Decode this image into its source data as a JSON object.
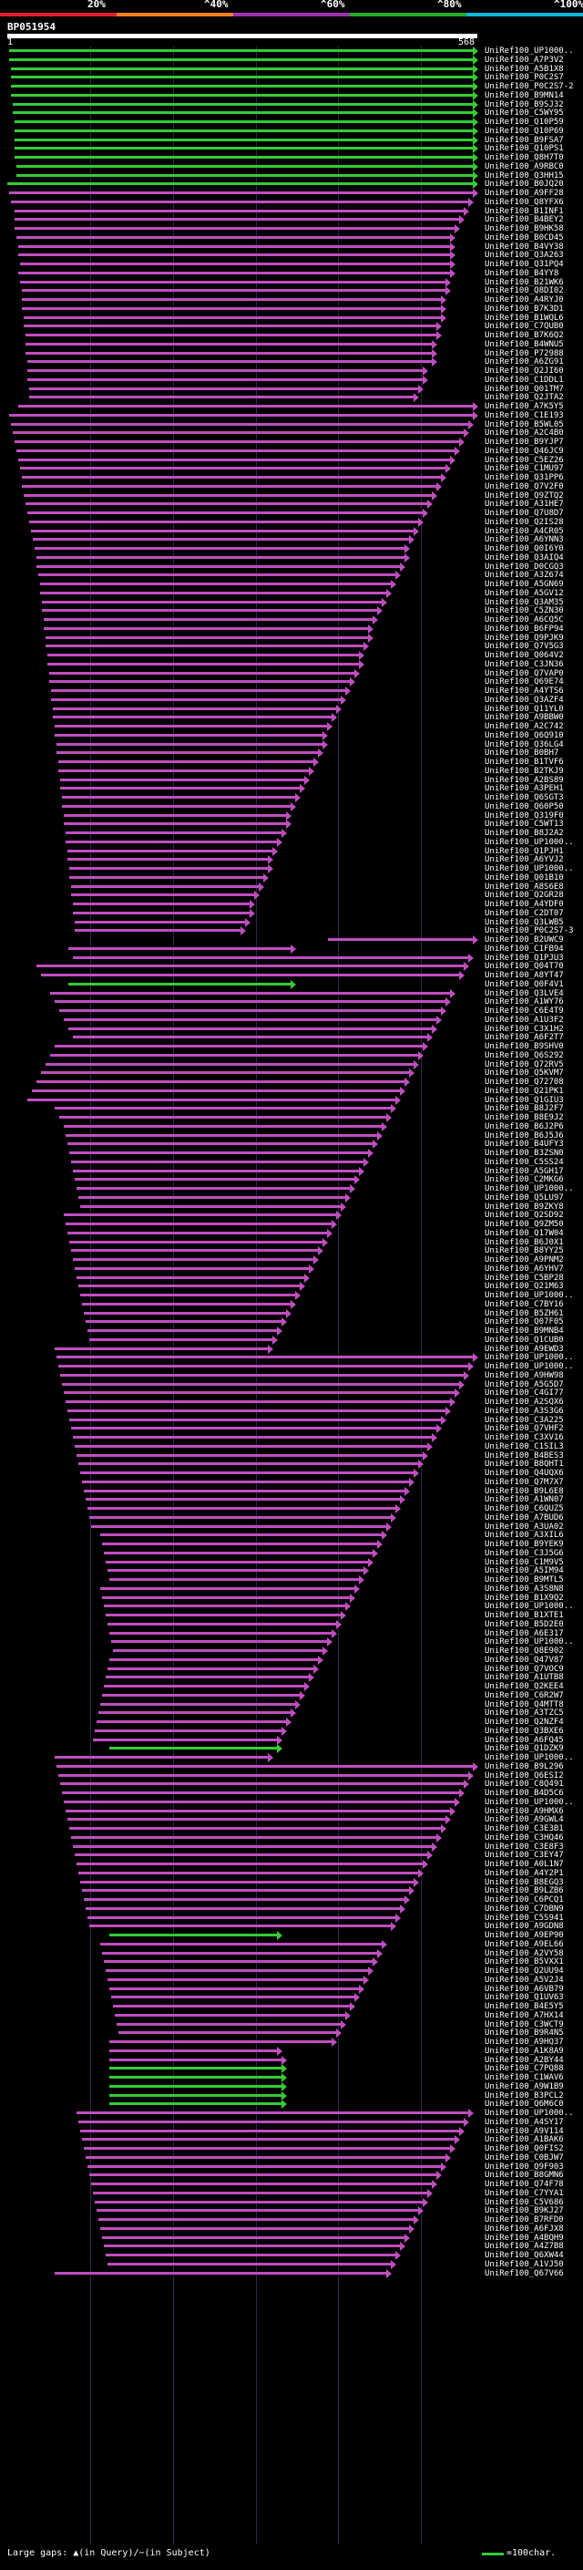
{
  "legend": {
    "segments": [
      {
        "label": "20%",
        "color": "#e0202c"
      },
      {
        "label": "^40%",
        "color": "#ff7f27"
      },
      {
        "label": "^60%",
        "color": "#a030b0"
      },
      {
        "label": "^80%",
        "color": "#22aa22"
      },
      {
        "label": "^100%",
        "color": "#11b6d9"
      }
    ]
  },
  "query": {
    "name": "BP051954",
    "start": "1",
    "end": "568"
  },
  "colors": {
    "high": "#33cc33",
    "mid": "#c04dc0"
  },
  "hits": [
    "UniRef100_UP1000..",
    "UniRef100_A7P3V2",
    "UniRef100_A5B1X8",
    "UniRef100_P0C2S7",
    "UniRef100_P0C2S7-2",
    "UniRef100_B9MN14",
    "UniRef100_B9SJ32",
    "UniRef100_C5WY95",
    "UniRef100_Q10P59",
    "UniRef100_Q10P69",
    "UniRef100_B9FSA7",
    "UniRef100_Q10PS1",
    "UniRef100_Q8H7T0",
    "UniRef100_A9RBC0",
    "UniRef100_Q3HH15",
    "UniRef100_B0JQ20",
    "UniRef100_A9FF28",
    "UniRef100_Q8YFX6",
    "UniRef100_B1INF1",
    "UniRef100_B4BEY2",
    "UniRef100_B9HK58",
    "UniRef100_B0CD45",
    "UniRef100_B4VY38",
    "UniRef100_Q3A263",
    "UniRef100_Q31PQ4",
    "UniRef100_B4YY8",
    "UniRef100_B21WK6",
    "UniRef100_Q8DI02",
    "UniRef100_A4RYJ0",
    "UniRef100_B7K3D1",
    "UniRef100_B1WQL6",
    "UniRef100_C7QUB0",
    "UniRef100_B7K6Q2",
    "UniRef100_B4WNU5",
    "UniRef100_P72988",
    "UniRef100_A6ZG91",
    "UniRef100_Q2JI60",
    "UniRef100_C1DDL1",
    "UniRef100_Q01TM7",
    "UniRef100_Q2JTA2",
    "UniRef100_A7K5Y5",
    "UniRef100_C1E193",
    "UniRef100_B5WL05",
    "UniRef100_A2C4B0",
    "UniRef100_B9YJP7",
    "UniRef100_Q46JC9",
    "UniRef100_C5EZ26",
    "UniRef100_C1MU97",
    "UniRef100_Q31PP6",
    "UniRef100_Q7V2F0",
    "UniRef100_Q9ZTQ2",
    "UniRef100_A31HE7",
    "UniRef100_Q7U8D7",
    "UniRef100_Q2IS28",
    "UniRef100_A4CR05",
    "UniRef100_A6YNN3",
    "UniRef100_Q0I6Y0",
    "UniRef100_Q3AIQ4",
    "UniRef100_D0CGQ3",
    "UniRef100_A3Z674",
    "UniRef100_A5GN69",
    "UniRef100_A5GV12",
    "UniRef100_Q3AM35",
    "UniRef100_C5ZN30",
    "UniRef100_A6CQ5C",
    "UniRef100_B6FP94",
    "UniRef100_Q9PJK9",
    "UniRef100_Q7V5G3",
    "UniRef100_Q064V2",
    "UniRef100_C3JN36",
    "UniRef100_Q7VAP0",
    "UniRef100_Q69E74",
    "UniRef100_A4YTS6",
    "UniRef100_Q3AZF4",
    "UniRef100_Q11YL0",
    "UniRef100_A9BBW0",
    "UniRef100_A2C742",
    "UniRef100_Q6Q910",
    "UniRef100_Q36LG4",
    "UniRef100_B0BH7",
    "UniRef100_B1TVF6",
    "UniRef100_B2TKJ9",
    "UniRef100_A2BS89",
    "UniRef100_A3PEH1",
    "UniRef100_Q6SGT3",
    "UniRef100_Q60P50",
    "UniRef100_Q319F0",
    "UniRef100_C5WT13",
    "UniRef100_B8J2A2",
    "UniRef100_UP1000..",
    "UniRef100_Q1PJH1",
    "UniRef100_A6YVJ2",
    "UniRef100_UP1000..",
    "UniRef100_Q01B10",
    "UniRef100_A8S6E8",
    "UniRef100_Q2GR28",
    "UniRef100_A4YDF0",
    "UniRef100_C2DT07",
    "UniRef100_Q3LWB5",
    "UniRef100_P0C2S7-3",
    "UniRef100_B2UWC9",
    "UniRef100_C1FB94",
    "UniRef100_Q1PJU3",
    "UniRef100_Q04T70",
    "UniRef100_A8YT47",
    "UniRef100_Q0F4V1",
    "UniRef100_Q3LVE4",
    "UniRef100_A1WY76",
    "UniRef100_C6E4T9",
    "UniRef100_A1U3F2",
    "UniRef100_C3X1H2",
    "UniRef100_A6F2T7",
    "UniRef100_B9SHV0",
    "UniRef100_Q6S292",
    "UniRef100_Q72RV5",
    "UniRef100_Q5KVM7",
    "UniRef100_Q72708",
    "UniRef100_Q21PK1",
    "UniRef100_Q1GIU3",
    "UniRef100_B8J2F7",
    "UniRef100_B8E9J2",
    "UniRef100_B6J2P6",
    "UniRef100_B6J5J6",
    "UniRef100_B4UFY3",
    "UniRef100_B3ZSN0",
    "UniRef100_C5SS24",
    "UniRef100_A5GH17",
    "UniRef100_C2MKG6",
    "UniRef100_UP1000..",
    "UniRef100_Q5LU97",
    "UniRef100_B9ZKY8",
    "UniRef100_Q2SD92",
    "UniRef100_Q9ZM50",
    "UniRef100_Q17W04",
    "UniRef100_B6J0X1",
    "UniRef100_B8YY25",
    "UniRef100_A9PNM2",
    "UniRef100_A6YHV7",
    "UniRef100_C5BP28",
    "UniRef100_Q21M63",
    "UniRef100_UP1000..",
    "UniRef100_C7BY16",
    "UniRef100_B5ZH61",
    "UniRef100_Q07F05",
    "UniRef100_B9MNB4",
    "UniRef100_Q1CUB0",
    "UniRef100_A9EWD3",
    "UniRef100_UP1000..",
    "UniRef100_UP1000..",
    "UniRef100_A9HW98",
    "UniRef100_A5G5D7",
    "UniRef100_C4GI77",
    "UniRef100_A2SQX6",
    "UniRef100_A3S3G6",
    "UniRef100_C3A225",
    "UniRef100_Q7VHF2",
    "UniRef100_C3XV16",
    "UniRef100_C1SIL3",
    "UniRef100_B4BES3",
    "UniRef100_B8QHT1",
    "UniRef100_Q4UQX6",
    "UniRef100_Q7M7X7",
    "UniRef100_B9L6E8",
    "UniRef100_A1WN07",
    "UniRef100_C6QUZ5",
    "UniRef100_A7BUD6",
    "UniRef100_A3UA02",
    "UniRef100_A3XIL6",
    "UniRef100_B9YEK9",
    "UniRef100_C3J5G6",
    "UniRef100_C1M9V5",
    "UniRef100_A5IM94",
    "UniRef100_B9MTL5",
    "UniRef100_A3S8N8",
    "UniRef100_B1X9Q2",
    "UniRef100_UP1000..",
    "UniRef100_B1XTE1",
    "UniRef100_B5D2E0",
    "UniRef100_A6E317",
    "UniRef100_UP1000..",
    "UniRef100_Q8E902",
    "UniRef100_Q47V87",
    "UniRef100_Q7VOC9",
    "UniRef100_A1UTB8",
    "UniRef100_Q2KEE4",
    "UniRef100_C6R2W7",
    "UniRef100_Q4MTT8",
    "UniRef100_A3TZC5",
    "UniRef100_Q2NZF4",
    "UniRef100_Q3BXE6",
    "UniRef100_A6FQ45",
    "UniRef100_Q1DZK9",
    "UniRef100_UP1000..",
    "UniRef100_B9L296",
    "UniRef100_Q6ESI2",
    "UniRef100_C8Q491",
    "UniRef100_B4D5C6",
    "UniRef100_UP1000..",
    "UniRef100_A9HMX6",
    "UniRef100_A9GWL4",
    "UniRef100_C3E3B1",
    "UniRef100_C3HQ46",
    "UniRef100_C3E8F3",
    "UniRef100_C3EY47",
    "UniRef100_A0L1N7",
    "UniRef100_A4Y2P1",
    "UniRef100_B8EGQ3",
    "UniRef100_B9LZB6",
    "UniRef100_C6PCQ1",
    "UniRef100_C7DBN9",
    "UniRef100_C5S941",
    "UniRef100_A9GDN8",
    "UniRef100_A9EP90",
    "UniRef100_A9EL66",
    "UniRef100_A2VY58",
    "UniRef100_B5VXX1",
    "UniRef100_Q2UU94",
    "UniRef100_A5V2J4",
    "UniRef100_A6VB79",
    "UniRef100_Q1UV63",
    "UniRef100_B4E5Y5",
    "UniRef100_A7HX14",
    "UniRef100_C3WCT9",
    "UniRef100_B9R4N5",
    "UniRef100_A9HQ37",
    "UniRef100_A1K8A9",
    "UniRef100_A2BY44",
    "UniRef100_C7PQ88",
    "UniRef100_C1WAV6",
    "UniRef100_A9W1B9",
    "UniRef100_B3PCL2",
    "UniRef100_Q6M6C0",
    "UniRef100_UP1000..",
    "UniRef100_A4SY17",
    "UniRef100_A9V114",
    "UniRef100_A1BAK6",
    "UniRef100_Q0FIS2",
    "UniRef100_C0BJW7",
    "UniRef100_Q9F903",
    "UniRef100_B8GMN6",
    "UniRef100_Q74F78",
    "UniRef100_C7YYA1",
    "UniRef100_C5V686",
    "UniRef100_B9KJ27",
    "UniRef100_B7RFD0",
    "UniRef100_A6FJX8",
    "UniRef100_A4BQH9",
    "UniRef100_A4Z7B8",
    "UniRef100_Q6XW44",
    "UniRef100_A1VJ50",
    "UniRef100_Q67V66"
  ],
  "footer": {
    "large_gaps_text": "Large gaps: ▲(in Query)/~(in Subject)",
    "scale_text": "=100char."
  }
}
